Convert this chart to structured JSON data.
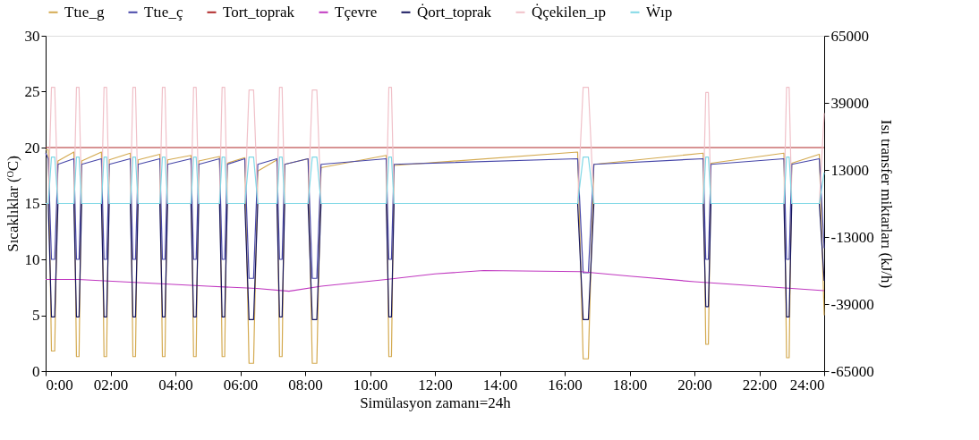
{
  "chart_data": {
    "type": "line",
    "xlabel": "Simülasyon zamanı=24h",
    "ylabel": "Sıcaklıklar (ᴼC)",
    "y2label": "Isı transfer miktarları (kJ/h)",
    "legend": "top",
    "x": [
      0,
      0.08,
      0.18,
      0.28,
      0.38,
      0.87,
      0.95,
      1.03,
      1.11,
      1.72,
      1.8,
      1.88,
      1.96,
      2.61,
      2.69,
      2.77,
      2.85,
      3.52,
      3.6,
      3.68,
      3.76,
      4.48,
      4.56,
      4.64,
      4.72,
      5.36,
      5.44,
      5.52,
      5.6,
      6.14,
      6.27,
      6.41,
      6.54,
      7.13,
      7.21,
      7.29,
      7.37,
      8.09,
      8.22,
      8.36,
      8.49,
      10.5,
      10.58,
      10.66,
      10.74,
      16.4,
      16.57,
      16.73,
      16.9,
      20.27,
      20.35,
      20.43,
      20.51,
      22.76,
      22.84,
      22.92,
      23.0,
      23.85,
      24
    ],
    "xlim": [
      0,
      24
    ],
    "xticks": [
      {
        "value": 0,
        "label": "0:00"
      },
      {
        "value": 2,
        "label": "02:00"
      },
      {
        "value": 4,
        "label": "04:00"
      },
      {
        "value": 6,
        "label": "06:00"
      },
      {
        "value": 8,
        "label": "08:00"
      },
      {
        "value": 10,
        "label": "10:00"
      },
      {
        "value": 12,
        "label": "12:00"
      },
      {
        "value": 14,
        "label": "14:00"
      },
      {
        "value": 16,
        "label": "16:00"
      },
      {
        "value": 18,
        "label": "18:00"
      },
      {
        "value": 20,
        "label": "20:00"
      },
      {
        "value": 22,
        "label": "22:00"
      },
      {
        "value": 24,
        "label": "24:00"
      }
    ],
    "ylim": [
      0,
      30
    ],
    "yticks": [
      0,
      5,
      10,
      15,
      20,
      25,
      30
    ],
    "y2lim": [
      -65000,
      65000
    ],
    "y2ticks": [
      -65000,
      -39000,
      -13000,
      13000,
      39000,
      65000
    ],
    "series": [
      {
        "name": "Ttıe_g",
        "color": "#d4aa50",
        "values": [
          19.8,
          19.8,
          1.8,
          1.8,
          18.8,
          19.6,
          1.3,
          1.3,
          18.8,
          19.6,
          1.3,
          1.3,
          18.9,
          19.5,
          1.3,
          1.3,
          18.9,
          19.4,
          1.3,
          1.3,
          18.9,
          19.3,
          1.3,
          1.3,
          18.8,
          19.2,
          1.3,
          1.3,
          18.6,
          19.1,
          0.7,
          0.7,
          17.9,
          18.9,
          1.3,
          1.3,
          18.5,
          19.0,
          0.7,
          0.7,
          18.2,
          19.3,
          1.3,
          1.3,
          18.4,
          19.6,
          1.1,
          1.1,
          18.5,
          19.5,
          2.4,
          2.4,
          18.6,
          19.5,
          1.2,
          1.2,
          18.6,
          19.4,
          5.0
        ]
      },
      {
        "name": "Ttıe_ç",
        "color": "#4646a8",
        "values": [
          19.5,
          19.0,
          10,
          10,
          18.5,
          19.0,
          10,
          10,
          18.5,
          19.0,
          10,
          10,
          18.5,
          19.0,
          10,
          10,
          18.5,
          19.0,
          10,
          10,
          18.5,
          19.0,
          10,
          10,
          18.5,
          19.0,
          10,
          10,
          18.5,
          19.0,
          8.3,
          8.3,
          18.5,
          19.0,
          10,
          10,
          18.5,
          19.0,
          8.3,
          8.3,
          18.5,
          19.0,
          10,
          10,
          18.5,
          19.0,
          8.8,
          8.8,
          18.5,
          19.0,
          10,
          10,
          18.5,
          19.0,
          10,
          10,
          18.5,
          19.0,
          11
        ]
      },
      {
        "name": "Tort_toprak",
        "color": "#b02828",
        "x": [
          0,
          24
        ],
        "values": [
          20,
          20
        ]
      },
      {
        "name": "Tçevre",
        "color": "#c038c0",
        "x": [
          0,
          1,
          3,
          5,
          6.5,
          7.5,
          8.5,
          10.5,
          12,
          13.5,
          16.5,
          18,
          20,
          22,
          24
        ],
        "values": [
          8.2,
          8.2,
          7.9,
          7.6,
          7.4,
          7.15,
          7.6,
          8.2,
          8.7,
          9.0,
          8.9,
          8.5,
          8.0,
          7.6,
          7.2
        ]
      },
      {
        "name": "Q̇ort_toprak",
        "color": "#16165e",
        "axis": "y2",
        "values": [
          0,
          0,
          -44000,
          -44000,
          0,
          0,
          -44000,
          -44000,
          0,
          0,
          -44000,
          -44000,
          0,
          0,
          -44000,
          -44000,
          0,
          0,
          -44000,
          -44000,
          0,
          0,
          -44000,
          -44000,
          0,
          0,
          -44000,
          -44000,
          0,
          0,
          -45000,
          -45000,
          0,
          0,
          -44000,
          -44000,
          0,
          0,
          -45000,
          -45000,
          0,
          0,
          -44000,
          -44000,
          0,
          0,
          -45000,
          -45000,
          0,
          0,
          -40000,
          -40000,
          0,
          0,
          -44000,
          -44000,
          0,
          0,
          -30000
        ]
      },
      {
        "name": "Q̇çekilen_ıp",
        "color": "#f0c0c8",
        "axis": "y2",
        "values": [
          0,
          0,
          45000,
          45000,
          0,
          0,
          45000,
          45000,
          0,
          0,
          45000,
          45000,
          0,
          0,
          45000,
          45000,
          0,
          0,
          45000,
          45000,
          0,
          0,
          45000,
          45000,
          0,
          0,
          45000,
          45000,
          0,
          0,
          44000,
          44000,
          0,
          0,
          45000,
          45000,
          0,
          0,
          44000,
          44000,
          0,
          0,
          45000,
          45000,
          0,
          0,
          45000,
          45000,
          0,
          0,
          43000,
          43000,
          0,
          0,
          45000,
          45000,
          0,
          0,
          35000
        ]
      },
      {
        "name": "Ẇıp",
        "color": "#80d8e6",
        "axis": "y2",
        "values": [
          0,
          0,
          18000,
          18000,
          0,
          0,
          18000,
          18000,
          0,
          0,
          18000,
          18000,
          0,
          0,
          18000,
          18000,
          0,
          0,
          18000,
          18000,
          0,
          0,
          18000,
          18000,
          0,
          0,
          18000,
          18000,
          0,
          0,
          18000,
          18000,
          0,
          0,
          18000,
          18000,
          0,
          0,
          18000,
          18000,
          0,
          0,
          18000,
          18000,
          0,
          0,
          18000,
          18000,
          0,
          0,
          18000,
          18000,
          0,
          0,
          18000,
          18000,
          0,
          0,
          12000
        ]
      }
    ]
  }
}
